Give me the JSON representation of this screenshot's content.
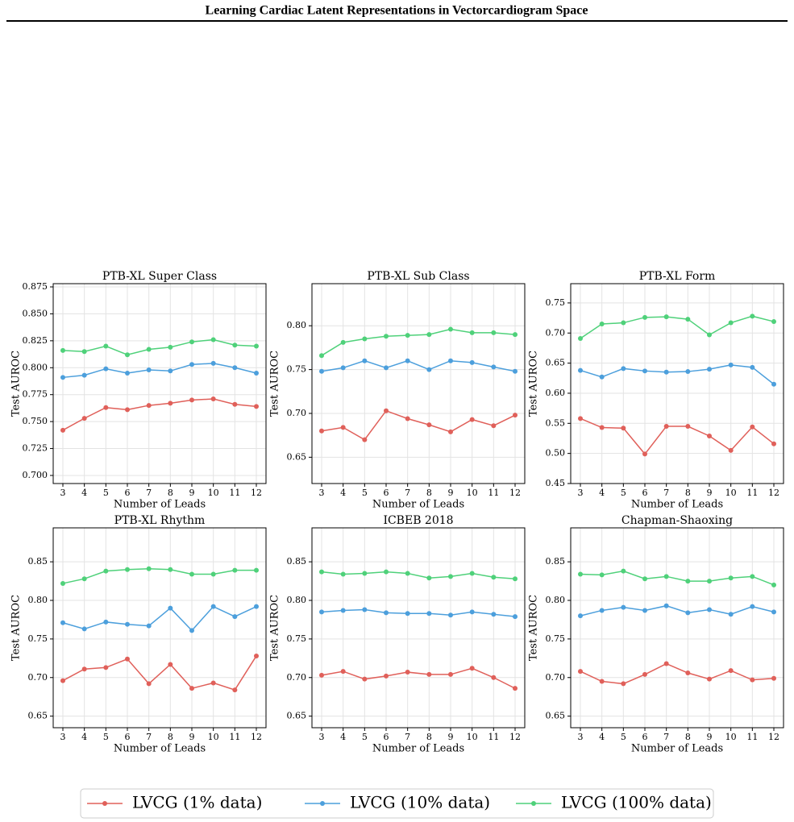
{
  "header": {
    "title": "Learning Cardiac Latent Representations in Vectorcardiogram Space"
  },
  "chart_data": [
    {
      "type": "line",
      "title": "PTB-XL Super Class",
      "xlabel": "Number of Leads",
      "ylabel": "Test AUROC",
      "grid": true,
      "x": [
        3,
        4,
        5,
        6,
        7,
        8,
        9,
        10,
        11,
        12
      ],
      "xlim": [
        2.55,
        12.45
      ],
      "xticks": [
        3,
        4,
        5,
        6,
        7,
        8,
        9,
        10,
        11,
        12
      ],
      "ylim": [
        0.6925,
        0.878
      ],
      "yticks": [
        {
          "value": 0.7,
          "label": "0.700"
        },
        0.725,
        {
          "value": 0.75,
          "label": "0.750"
        },
        0.775,
        {
          "value": 0.8,
          "label": "0.800"
        },
        0.825,
        {
          "value": 0.85,
          "label": "0.850"
        },
        0.875
      ],
      "series": [
        {
          "name": "LVCG (1% data)",
          "color": "#e0605a",
          "values": [
            0.742,
            0.753,
            0.763,
            0.761,
            0.765,
            0.767,
            0.77,
            0.771,
            0.766,
            0.764
          ]
        },
        {
          "name": "LVCG (10% data)",
          "color": "#4c9fdc",
          "values": [
            0.791,
            0.793,
            0.799,
            0.795,
            0.798,
            0.797,
            0.803,
            0.804,
            0.8,
            0.795
          ]
        },
        {
          "name": "LVCG (100% data)",
          "color": "#4fd17a",
          "values": [
            0.816,
            0.815,
            0.82,
            0.812,
            0.817,
            0.819,
            0.824,
            0.826,
            0.821,
            0.82
          ]
        }
      ]
    },
    {
      "type": "line",
      "title": "PTB-XL Sub Class",
      "xlabel": "Number of Leads",
      "ylabel": "Test AUROC",
      "grid": true,
      "x": [
        3,
        4,
        5,
        6,
        7,
        8,
        9,
        10,
        11,
        12
      ],
      "xlim": [
        2.55,
        12.45
      ],
      "xticks": [
        3,
        4,
        5,
        6,
        7,
        8,
        9,
        10,
        11,
        12
      ],
      "ylim": [
        0.62,
        0.848
      ],
      "yticks": [
        0.65,
        {
          "value": 0.7,
          "label": "0.70"
        },
        0.75,
        {
          "value": 0.8,
          "label": "0.80"
        }
      ],
      "series": [
        {
          "name": "LVCG (1% data)",
          "color": "#e0605a",
          "values": [
            0.68,
            0.684,
            0.67,
            0.703,
            0.694,
            0.687,
            0.679,
            0.693,
            0.686,
            0.698
          ]
        },
        {
          "name": "LVCG (10% data)",
          "color": "#4c9fdc",
          "values": [
            0.748,
            0.752,
            0.76,
            0.752,
            0.76,
            0.75,
            0.76,
            0.758,
            0.753,
            0.748
          ]
        },
        {
          "name": "LVCG (100% data)",
          "color": "#4fd17a",
          "values": [
            0.766,
            0.781,
            0.785,
            0.788,
            0.789,
            0.79,
            0.796,
            0.792,
            0.792,
            0.79
          ]
        }
      ]
    },
    {
      "type": "line",
      "title": "PTB-XL Form",
      "xlabel": "Number of Leads",
      "ylabel": "Test AUROC",
      "grid": true,
      "x": [
        3,
        4,
        5,
        6,
        7,
        8,
        9,
        10,
        11,
        12
      ],
      "xlim": [
        2.55,
        12.45
      ],
      "xticks": [
        3,
        4,
        5,
        6,
        7,
        8,
        9,
        10,
        11,
        12
      ],
      "ylim": [
        0.45,
        0.782
      ],
      "yticks": [
        0.45,
        {
          "value": 0.5,
          "label": "0.50"
        },
        0.55,
        {
          "value": 0.6,
          "label": "0.60"
        },
        0.65,
        {
          "value": 0.7,
          "label": "0.70"
        },
        0.75
      ],
      "series": [
        {
          "name": "LVCG (1% data)",
          "color": "#e0605a",
          "values": [
            0.558,
            0.543,
            0.542,
            0.499,
            0.545,
            0.545,
            0.529,
            0.505,
            0.544,
            0.516
          ]
        },
        {
          "name": "LVCG (10% data)",
          "color": "#4c9fdc",
          "values": [
            0.638,
            0.627,
            0.641,
            0.637,
            0.635,
            0.636,
            0.64,
            0.647,
            0.643,
            0.615
          ]
        },
        {
          "name": "LVCG (100% data)",
          "color": "#4fd17a",
          "values": [
            0.691,
            0.715,
            0.717,
            0.726,
            0.727,
            0.723,
            0.697,
            0.717,
            0.728,
            0.719
          ]
        }
      ]
    },
    {
      "type": "line",
      "title": "PTB-XL Rhythm",
      "xlabel": "Number of Leads",
      "ylabel": "Test AUROC",
      "grid": true,
      "x": [
        3,
        4,
        5,
        6,
        7,
        8,
        9,
        10,
        11,
        12
      ],
      "xlim": [
        2.55,
        12.45
      ],
      "xticks": [
        3,
        4,
        5,
        6,
        7,
        8,
        9,
        10,
        11,
        12
      ],
      "ylim": [
        0.635,
        0.894
      ],
      "yticks": [
        0.65,
        {
          "value": 0.7,
          "label": "0.70"
        },
        0.75,
        {
          "value": 0.8,
          "label": "0.80"
        },
        0.85
      ],
      "series": [
        {
          "name": "LVCG (1% data)",
          "color": "#e0605a",
          "values": [
            0.696,
            0.711,
            0.713,
            0.724,
            0.692,
            0.717,
            0.686,
            0.693,
            0.684,
            0.728
          ]
        },
        {
          "name": "LVCG (10% data)",
          "color": "#4c9fdc",
          "values": [
            0.771,
            0.763,
            0.772,
            0.769,
            0.767,
            0.79,
            0.761,
            0.792,
            0.779,
            0.792
          ]
        },
        {
          "name": "LVCG (100% data)",
          "color": "#4fd17a",
          "values": [
            0.822,
            0.828,
            0.838,
            0.84,
            0.841,
            0.84,
            0.834,
            0.834,
            0.839,
            0.839
          ]
        }
      ]
    },
    {
      "type": "line",
      "title": "ICBEB 2018",
      "xlabel": "Number of Leads",
      "ylabel": "Test AUROC",
      "grid": true,
      "x": [
        3,
        4,
        5,
        6,
        7,
        8,
        9,
        10,
        11,
        12
      ],
      "xlim": [
        2.55,
        12.45
      ],
      "xticks": [
        3,
        4,
        5,
        6,
        7,
        8,
        9,
        10,
        11,
        12
      ],
      "ylim": [
        0.635,
        0.894
      ],
      "yticks": [
        0.65,
        {
          "value": 0.7,
          "label": "0.70"
        },
        0.75,
        {
          "value": 0.8,
          "label": "0.80"
        },
        0.85
      ],
      "series": [
        {
          "name": "LVCG (1% data)",
          "color": "#e0605a",
          "values": [
            0.703,
            0.708,
            0.698,
            0.702,
            0.707,
            0.704,
            0.704,
            0.712,
            0.7,
            0.686
          ]
        },
        {
          "name": "LVCG (10% data)",
          "color": "#4c9fdc",
          "values": [
            0.785,
            0.787,
            0.788,
            0.784,
            0.783,
            0.783,
            0.781,
            0.785,
            0.782,
            0.779
          ]
        },
        {
          "name": "LVCG (100% data)",
          "color": "#4fd17a",
          "values": [
            0.837,
            0.834,
            0.835,
            0.837,
            0.835,
            0.829,
            0.831,
            0.835,
            0.83,
            0.828
          ]
        }
      ]
    },
    {
      "type": "line",
      "title": "Chapman-Shaoxing",
      "xlabel": "Number of Leads",
      "ylabel": "Test AUROC",
      "grid": true,
      "x": [
        3,
        4,
        5,
        6,
        7,
        8,
        9,
        10,
        11,
        12
      ],
      "xlim": [
        2.55,
        12.45
      ],
      "xticks": [
        3,
        4,
        5,
        6,
        7,
        8,
        9,
        10,
        11,
        12
      ],
      "ylim": [
        0.635,
        0.894
      ],
      "yticks": [
        0.65,
        {
          "value": 0.7,
          "label": "0.70"
        },
        0.75,
        {
          "value": 0.8,
          "label": "0.80"
        },
        0.85
      ],
      "series": [
        {
          "name": "LVCG (1% data)",
          "color": "#e0605a",
          "values": [
            0.708,
            0.695,
            0.692,
            0.704,
            0.718,
            0.706,
            0.698,
            0.709,
            0.697,
            0.699
          ]
        },
        {
          "name": "LVCG (10% data)",
          "color": "#4c9fdc",
          "values": [
            0.78,
            0.787,
            0.791,
            0.787,
            0.793,
            0.784,
            0.788,
            0.782,
            0.792,
            0.785
          ]
        },
        {
          "name": "LVCG (100% data)",
          "color": "#4fd17a",
          "values": [
            0.834,
            0.833,
            0.838,
            0.828,
            0.831,
            0.825,
            0.825,
            0.829,
            0.831,
            0.82
          ]
        }
      ]
    }
  ]
}
